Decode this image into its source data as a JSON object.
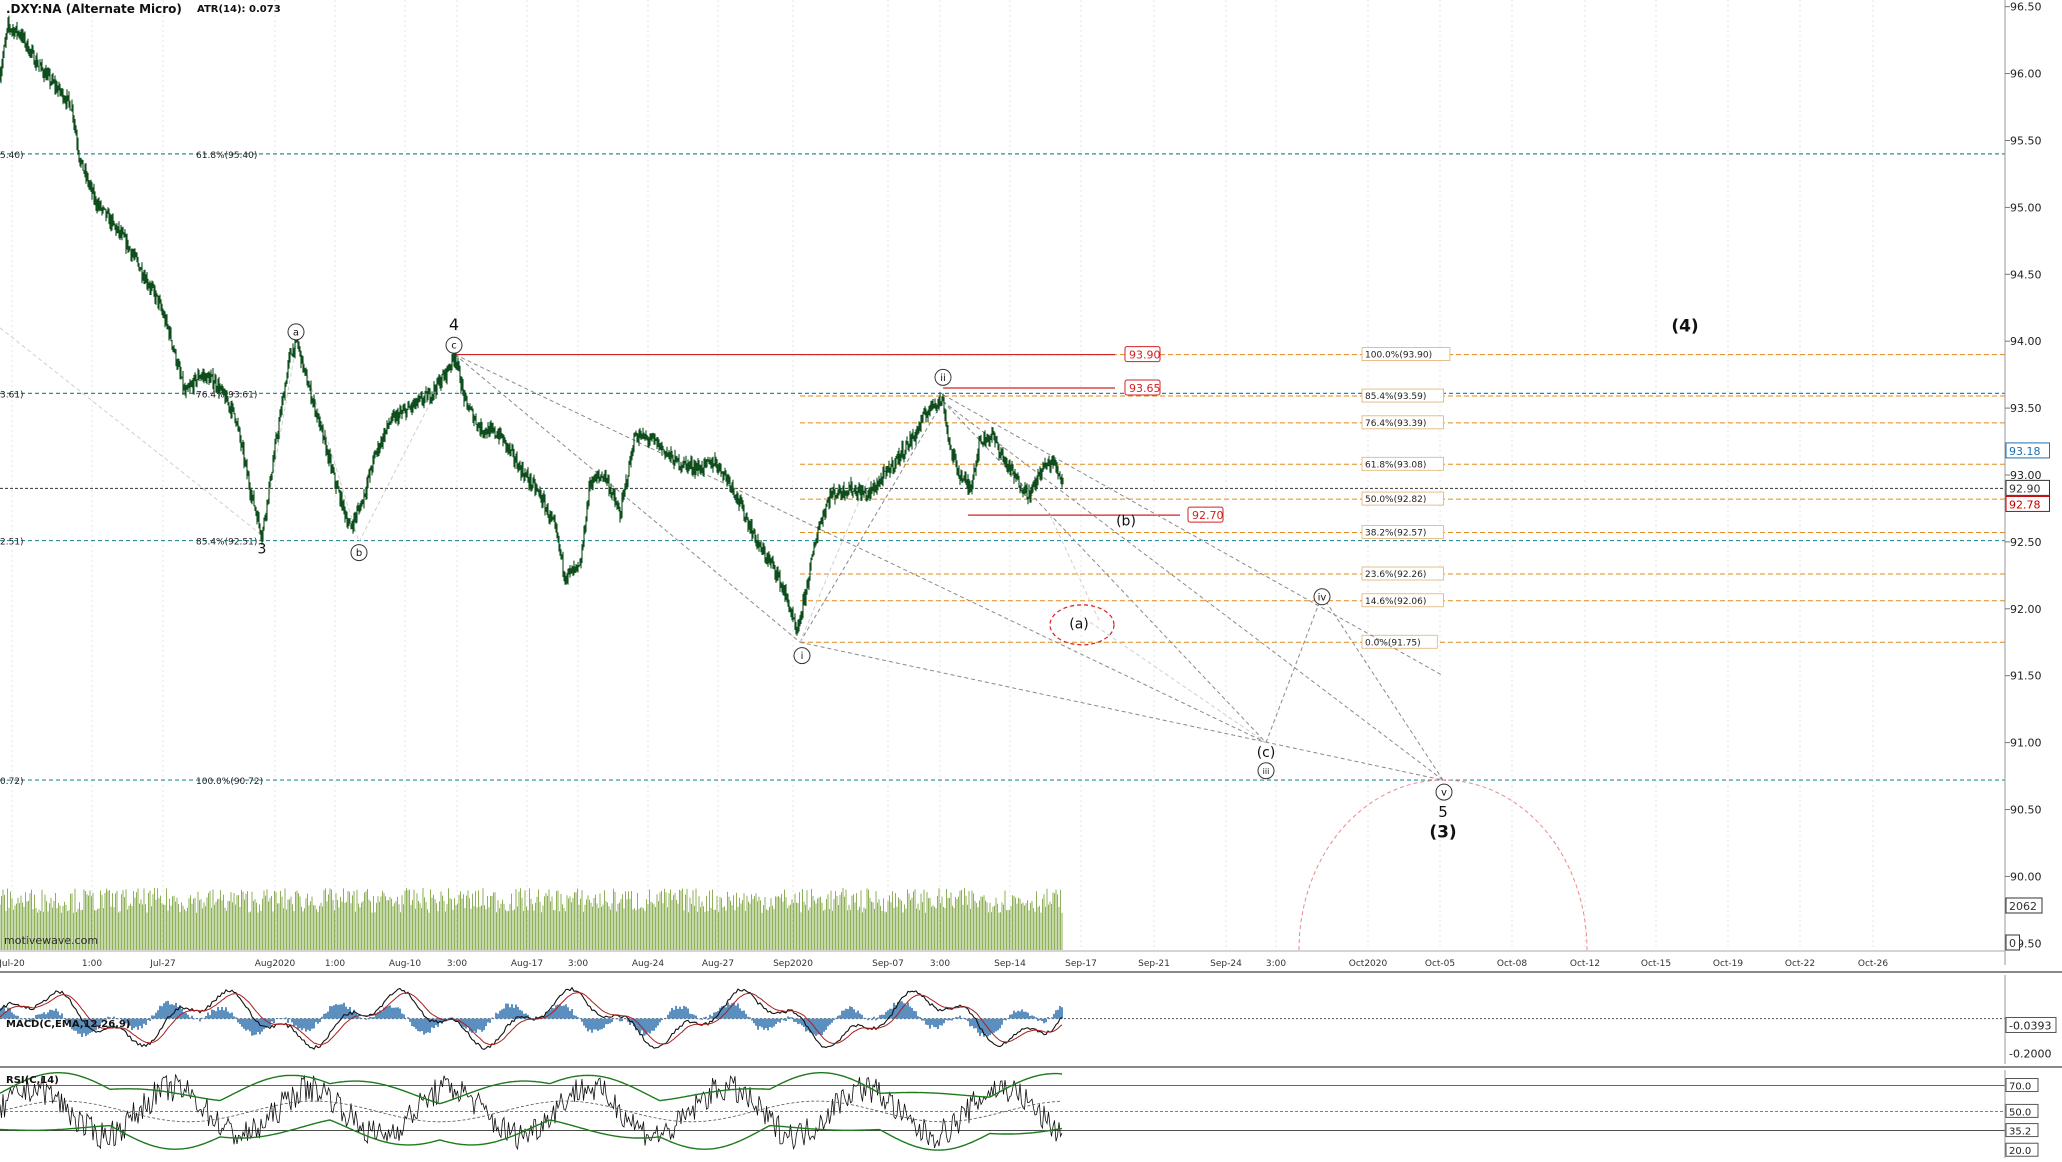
{
  "chart_data": {
    "type": "line",
    "symbol": ".DXY:NA (Alternate Micro)",
    "atr_label": "ATR(14): 0.073",
    "watermark": "motivewave.com",
    "price_axis": {
      "ylim": [
        89.45,
        96.55
      ],
      "ticks": [
        96.5,
        96.0,
        95.5,
        95.0,
        94.5,
        94.0,
        93.5,
        93.0,
        92.5,
        92.0,
        91.5,
        91.0,
        90.5,
        90.0,
        89.5
      ],
      "tick_labels": [
        "96.50",
        "96.00",
        "95.50",
        "95.00",
        "94.50",
        "94.00",
        "93.50",
        "93.00",
        "92.50",
        "92.00",
        "91.50",
        "91.00",
        "90.50",
        "90.00",
        "89.50"
      ]
    },
    "x_axis": {
      "labels": [
        {
          "t": 12,
          "text": "Jul-20"
        },
        {
          "t": 92,
          "text": "1:00"
        },
        {
          "t": 163,
          "text": "Jul-27"
        },
        {
          "t": 275,
          "text": "Aug2020"
        },
        {
          "t": 335,
          "text": "1:00"
        },
        {
          "t": 405,
          "text": "Aug-10"
        },
        {
          "t": 457,
          "text": "3:00"
        },
        {
          "t": 527,
          "text": "Aug-17"
        },
        {
          "t": 578,
          "text": "3:00"
        },
        {
          "t": 648,
          "text": "Aug-24"
        },
        {
          "t": 718,
          "text": "Aug-27"
        },
        {
          "t": 793,
          "text": "Sep2020"
        },
        {
          "t": 888,
          "text": "Sep-07"
        },
        {
          "t": 940,
          "text": "3:00"
        },
        {
          "t": 1010,
          "text": "Sep-14"
        },
        {
          "t": 1081,
          "text": "Sep-17"
        },
        {
          "t": 1154,
          "text": "Sep-21"
        },
        {
          "t": 1226,
          "text": "Sep-24"
        },
        {
          "t": 1276,
          "text": "3:00"
        },
        {
          "t": 1368,
          "text": "Oct2020"
        },
        {
          "t": 1440,
          "text": "Oct-05"
        },
        {
          "t": 1512,
          "text": "Oct-08"
        },
        {
          "t": 1585,
          "text": "Oct-12"
        },
        {
          "t": 1656,
          "text": "Oct-15"
        },
        {
          "t": 1728,
          "text": "Oct-19"
        },
        {
          "t": 1800,
          "text": "Oct-22"
        },
        {
          "t": 1873,
          "text": "Oct-26"
        }
      ]
    },
    "price_anchors": [
      [
        0,
        96.0
      ],
      [
        8,
        96.35
      ],
      [
        20,
        96.3
      ],
      [
        35,
        96.1
      ],
      [
        50,
        95.95
      ],
      [
        62,
        95.85
      ],
      [
        72,
        95.75
      ],
      [
        80,
        95.35
      ],
      [
        95,
        95.05
      ],
      [
        110,
        94.9
      ],
      [
        125,
        94.75
      ],
      [
        140,
        94.55
      ],
      [
        158,
        94.3
      ],
      [
        170,
        94.05
      ],
      [
        185,
        93.6
      ],
      [
        200,
        93.75
      ],
      [
        215,
        93.7
      ],
      [
        235,
        93.45
      ],
      [
        250,
        92.9
      ],
      [
        262,
        92.55
      ],
      [
        275,
        93.2
      ],
      [
        290,
        93.9
      ],
      [
        297,
        94.0
      ],
      [
        305,
        93.75
      ],
      [
        315,
        93.5
      ],
      [
        335,
        92.95
      ],
      [
        350,
        92.6
      ],
      [
        362,
        92.8
      ],
      [
        375,
        93.15
      ],
      [
        390,
        93.4
      ],
      [
        410,
        93.5
      ],
      [
        430,
        93.6
      ],
      [
        445,
        93.75
      ],
      [
        455,
        93.9
      ],
      [
        465,
        93.55
      ],
      [
        480,
        93.35
      ],
      [
        500,
        93.3
      ],
      [
        520,
        93.05
      ],
      [
        540,
        92.85
      ],
      [
        555,
        92.6
      ],
      [
        565,
        92.25
      ],
      [
        580,
        92.3
      ],
      [
        590,
        92.95
      ],
      [
        605,
        93.0
      ],
      [
        620,
        92.7
      ],
      [
        635,
        93.3
      ],
      [
        655,
        93.25
      ],
      [
        675,
        93.1
      ],
      [
        700,
        93.05
      ],
      [
        715,
        93.1
      ],
      [
        730,
        92.95
      ],
      [
        745,
        92.7
      ],
      [
        760,
        92.45
      ],
      [
        775,
        92.3
      ],
      [
        788,
        92.05
      ],
      [
        797,
        91.8
      ],
      [
        805,
        92.1
      ],
      [
        818,
        92.6
      ],
      [
        830,
        92.85
      ],
      [
        850,
        92.9
      ],
      [
        868,
        92.85
      ],
      [
        885,
        93.0
      ],
      [
        900,
        93.15
      ],
      [
        915,
        93.3
      ],
      [
        925,
        93.45
      ],
      [
        935,
        93.55
      ],
      [
        943,
        93.55
      ],
      [
        950,
        93.2
      ],
      [
        960,
        93.0
      ],
      [
        970,
        92.9
      ],
      [
        980,
        93.25
      ],
      [
        992,
        93.3
      ],
      [
        1005,
        93.1
      ],
      [
        1018,
        92.95
      ],
      [
        1030,
        92.85
      ],
      [
        1042,
        93.05
      ],
      [
        1053,
        93.1
      ],
      [
        1063,
        92.95
      ]
    ],
    "right_labels": [
      {
        "text": "93.18",
        "price": 93.18,
        "color": "#1f6fb2"
      },
      {
        "text": "92.90",
        "price": 92.9,
        "color": "#333333"
      },
      {
        "text": "92.78",
        "price": 92.78,
        "color": "#c00000"
      },
      {
        "text": "2062",
        "price": 89.6,
        "color": "#333333"
      },
      {
        "text": "0",
        "price": 89.46,
        "color": "#333333"
      }
    ],
    "blue_levels": [
      {
        "price": 95.4,
        "left": "5.40)",
        "label": "61.8%(95.40)"
      },
      {
        "price": 93.61,
        "left": "3.61)",
        "label": "76.4%(93.61)"
      },
      {
        "price": 92.51,
        "left": "2.51)",
        "label": "85.4%(92.51)"
      },
      {
        "price": 90.72,
        "left": "0.72)",
        "label": "100.0%(90.72)"
      }
    ],
    "fib_levels": [
      {
        "price": 93.9,
        "label": "100.0%(93.90)"
      },
      {
        "price": 93.59,
        "label": "85.4%(93.59)"
      },
      {
        "price": 93.39,
        "label": "76.4%(93.39)"
      },
      {
        "price": 93.08,
        "label": "61.8%(93.08)"
      },
      {
        "price": 92.82,
        "label": "50.0%(92.82)"
      },
      {
        "price": 92.57,
        "label": "38.2%(92.57)"
      },
      {
        "price": 92.26,
        "label": "23.6%(92.26)"
      },
      {
        "price": 92.06,
        "label": "14.6%(92.06)"
      },
      {
        "price": 91.75,
        "label": "0.0%(91.75)"
      }
    ],
    "red_levels": [
      {
        "price": 93.9,
        "t0": 455,
        "t1": 1115,
        "label": "93.90",
        "lx": 1125
      },
      {
        "price": 93.65,
        "t0": 943,
        "t1": 1115,
        "label": "93.65",
        "lx": 1125
      },
      {
        "price": 92.7,
        "t0": 968,
        "t1": 1180,
        "label": "92.70",
        "lx": 1188
      }
    ],
    "wave_labels": [
      {
        "text": "a",
        "t": 296,
        "price": 94.07,
        "circle": true
      },
      {
        "text": "b",
        "t": 359,
        "price": 92.42,
        "circle": true
      },
      {
        "text": "c",
        "t": 454,
        "price": 93.97,
        "circle": true
      },
      {
        "text": "4",
        "t": 454,
        "price": 94.12,
        "circle": false,
        "size": 16
      },
      {
        "text": "3",
        "t": 262,
        "price": 92.45,
        "circle": false,
        "size": 14
      },
      {
        "text": "i",
        "t": 802,
        "price": 91.65,
        "circle": true
      },
      {
        "text": "ii",
        "t": 943,
        "price": 93.73,
        "circle": true
      },
      {
        "text": "(b)",
        "t": 1126,
        "price": 92.66,
        "circle": false,
        "size": 14
      },
      {
        "text": "(a)",
        "t": 1079,
        "price": 91.89,
        "circle": false,
        "size": 14
      },
      {
        "text": "iv",
        "t": 1322,
        "price": 92.09,
        "circle": true
      },
      {
        "text": "(c)",
        "t": 1266,
        "price": 90.93,
        "circle": false,
        "size": 14
      },
      {
        "text": "iii",
        "t": 1266,
        "price": 90.79,
        "circle": true
      },
      {
        "text": "v",
        "t": 1444,
        "price": 90.63,
        "circle": true
      },
      {
        "text": "5",
        "t": 1443,
        "price": 90.48,
        "circle": false,
        "size": 15
      },
      {
        "text": "(3)",
        "t": 1443,
        "price": 90.33,
        "circle": false,
        "size": 17,
        "bold": true
      },
      {
        "text": "(4)",
        "t": 1685,
        "price": 94.11,
        "circle": false,
        "size": 17,
        "bold": true
      }
    ],
    "macd": {
      "label": "MACD(C,EMA,12,26,9)",
      "ylim": [
        -0.26,
        0.25
      ],
      "right_labels": [
        {
          "text": "-0.0393",
          "value": -0.0393,
          "boxed": true
        },
        {
          "text": "-0.2000",
          "value": -0.2,
          "boxed": false
        }
      ]
    },
    "rsi": {
      "label": "RSI(C,14)",
      "ylim": [
        14,
        82
      ],
      "right_labels": [
        {
          "text": "70.0",
          "value": 70.0
        },
        {
          "text": "50.0",
          "value": 50.0
        },
        {
          "text": "35.2",
          "value": 35.2
        },
        {
          "text": "20.0",
          "value": 20.0
        }
      ]
    },
    "colors": {
      "candle": "#0e4d1c",
      "volume": "#7aa23a",
      "fib": "#e08a1e",
      "blue": "#2c8c9a",
      "red": "#d62020",
      "macd_hist": "#5a8fc0"
    }
  }
}
